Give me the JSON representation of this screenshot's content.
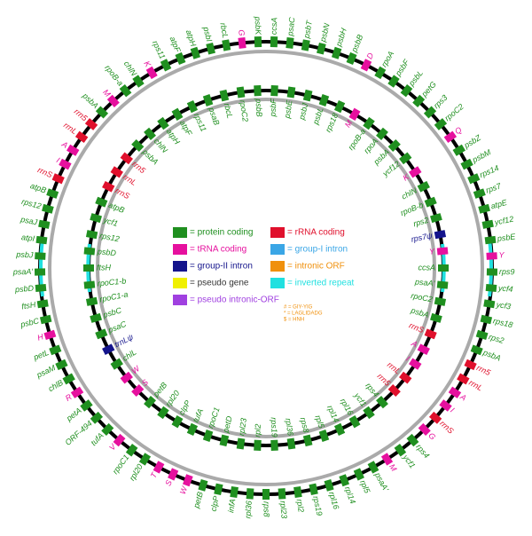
{
  "genomes": [
    {
      "genes": [
        {
          "label": "ccsA",
          "color": "#1f8f1f"
        },
        {
          "label": "psaC",
          "color": "#1f8f1f"
        },
        {
          "label": "psbT",
          "color": "#1f8f1f"
        },
        {
          "label": "psbN",
          "color": "#1f8f1f"
        },
        {
          "label": "psbH",
          "color": "#1f8f1f"
        },
        {
          "label": "psbB",
          "color": "#1f8f1f"
        },
        {
          "label": "D",
          "color": "#e6109e"
        },
        {
          "label": "rpoA",
          "color": "#1f8f1f"
        },
        {
          "label": "psbF",
          "color": "#1f8f1f"
        },
        {
          "label": "psbL",
          "color": "#1f8f1f"
        },
        {
          "label": "petG",
          "color": "#1f8f1f"
        },
        {
          "label": "rps3",
          "color": "#1f8f1f"
        },
        {
          "label": "rpoC2",
          "color": "#1f8f1f"
        },
        {
          "label": "Q",
          "color": "#e6109e"
        },
        {
          "label": "psbZ",
          "color": "#1f8f1f"
        },
        {
          "label": "psbM",
          "color": "#1f8f1f"
        },
        {
          "label": "rps14",
          "color": "#1f8f1f"
        },
        {
          "label": "rps7",
          "color": "#1f8f1f"
        },
        {
          "label": "atpE",
          "color": "#1f8f1f"
        },
        {
          "label": "ycf12",
          "color": "#1f8f1f"
        },
        {
          "label": "psbE",
          "color": "#1f8f1f"
        },
        {
          "label": "Y",
          "color": "#e6109e"
        },
        {
          "label": "rps9",
          "color": "#1f8f1f"
        },
        {
          "label": "ycf4",
          "color": "#1f8f1f"
        },
        {
          "label": "ycf3",
          "color": "#1f8f1f"
        },
        {
          "label": "rps18",
          "color": "#1f8f1f"
        },
        {
          "label": "rps2",
          "color": "#1f8f1f"
        },
        {
          "label": "psbA",
          "color": "#1f8f1f"
        },
        {
          "label": "rrn5",
          "color": "#e0102c"
        },
        {
          "label": "rrnL",
          "color": "#e0102c"
        },
        {
          "label": "A",
          "color": "#e6109e"
        },
        {
          "label": "I",
          "color": "#e6109e"
        },
        {
          "label": "rrnS",
          "color": "#e0102c"
        },
        {
          "label": "G",
          "color": "#e6109e"
        },
        {
          "label": "rps4",
          "color": "#1f8f1f"
        },
        {
          "label": "ycf1",
          "color": "#1f8f1f"
        },
        {
          "label": "M",
          "color": "#e6109e"
        },
        {
          "label": "psaA'",
          "color": "#1f8f1f"
        },
        {
          "label": "rpl5",
          "color": "#1f8f1f"
        },
        {
          "label": "rpl14",
          "color": "#1f8f1f"
        },
        {
          "label": "rpl16",
          "color": "#1f8f1f"
        },
        {
          "label": "rps19",
          "color": "#1f8f1f"
        },
        {
          "label": "rpl2",
          "color": "#1f8f1f"
        },
        {
          "label": "rpl23",
          "color": "#1f8f1f"
        },
        {
          "label": "rps8",
          "color": "#1f8f1f"
        },
        {
          "label": "rpl36",
          "color": "#1f8f1f"
        },
        {
          "label": "infA",
          "color": "#1f8f1f"
        },
        {
          "label": "clpP",
          "color": "#1f8f1f"
        },
        {
          "label": "petB",
          "color": "#1f8f1f"
        },
        {
          "label": "W",
          "color": "#e6109e"
        },
        {
          "label": "S",
          "color": "#e6109e"
        },
        {
          "label": "T",
          "color": "#e6109e"
        },
        {
          "label": "rpl20",
          "color": "#1f8f1f"
        },
        {
          "label": "rpoC1",
          "color": "#1f8f1f"
        },
        {
          "label": "V",
          "color": "#e6109e"
        },
        {
          "label": "tufA",
          "color": "#1f8f1f"
        },
        {
          "label": "ORF-494",
          "color": "#1f8f1f"
        },
        {
          "label": "petA",
          "color": "#1f8f1f"
        },
        {
          "label": "R",
          "color": "#e6109e"
        },
        {
          "label": "chlB",
          "color": "#1f8f1f"
        },
        {
          "label": "psaM",
          "color": "#1f8f1f"
        },
        {
          "label": "petL",
          "color": "#1f8f1f"
        },
        {
          "label": "H",
          "color": "#e6109e"
        },
        {
          "label": "psbC",
          "color": "#1f8f1f"
        },
        {
          "label": "ftsH",
          "color": "#1f8f1f"
        },
        {
          "label": "psbD",
          "color": "#1f8f1f"
        },
        {
          "label": "psaA'",
          "color": "#1f8f1f"
        },
        {
          "label": "psbJ",
          "color": "#1f8f1f"
        },
        {
          "label": "atpI",
          "color": "#1f8f1f"
        },
        {
          "label": "psaJ",
          "color": "#1f8f1f"
        },
        {
          "label": "rps12",
          "color": "#1f8f1f"
        },
        {
          "label": "atpB",
          "color": "#1f8f1f"
        },
        {
          "label": "rrnS",
          "color": "#e0102c"
        },
        {
          "label": "I",
          "color": "#e6109e"
        },
        {
          "label": "A",
          "color": "#e6109e"
        },
        {
          "label": "rrnL",
          "color": "#e0102c"
        },
        {
          "label": "rrn5",
          "color": "#e0102c"
        },
        {
          "label": "psbA",
          "color": "#1f8f1f"
        },
        {
          "label": "M",
          "color": "#e6109e"
        },
        {
          "label": "rpoB-a",
          "color": "#1f8f1f"
        },
        {
          "label": "chlN",
          "color": "#1f8f1f"
        },
        {
          "label": "K",
          "color": "#e6109e"
        },
        {
          "label": "rps11",
          "color": "#1f8f1f"
        },
        {
          "label": "atpF",
          "color": "#1f8f1f"
        },
        {
          "label": "atpH",
          "color": "#1f8f1f"
        },
        {
          "label": "psbI",
          "color": "#1f8f1f"
        },
        {
          "label": "rbcL",
          "color": "#1f8f1f"
        },
        {
          "label": "G",
          "color": "#e6109e"
        },
        {
          "label": "psbK",
          "color": "#1f8f1f"
        }
      ]
    },
    {
      "genes": [
        {
          "label": "psbF",
          "color": "#1f8f1f"
        },
        {
          "label": "psbE",
          "color": "#1f8f1f"
        },
        {
          "label": "psbJ",
          "color": "#1f8f1f"
        },
        {
          "label": "psbL",
          "color": "#1f8f1f"
        },
        {
          "label": "rps18",
          "color": "#1f8f1f"
        },
        {
          "label": "M",
          "color": "#e6109e"
        },
        {
          "label": "rpoB-a",
          "color": "#1f8f1f"
        },
        {
          "label": "rpoA",
          "color": "#1f8f1f"
        },
        {
          "label": "psbA",
          "color": "#1f8f1f"
        },
        {
          "label": "ycf12",
          "color": "#1f8f1f"
        },
        {
          "label": "K",
          "color": "#e6109e"
        },
        {
          "label": "chlN",
          "color": "#1f8f1f"
        },
        {
          "label": "rpoB-b",
          "color": "#1f8f1f"
        },
        {
          "label": "rps2",
          "color": "#1f8f1f"
        },
        {
          "label": "rps7ψ",
          "color": "#14148c"
        },
        {
          "label": "Y",
          "color": "#e6109e"
        },
        {
          "label": "ccsA",
          "color": "#1f8f1f"
        },
        {
          "label": "psaA'",
          "color": "#1f8f1f"
        },
        {
          "label": "rpoC2",
          "color": "#1f8f1f"
        },
        {
          "label": "psbA",
          "color": "#1f8f1f"
        },
        {
          "label": "rrnS",
          "color": "#e0102c"
        },
        {
          "label": "A",
          "color": "#e6109e"
        },
        {
          "label": "I",
          "color": "#e6109e"
        },
        {
          "label": "rrnL",
          "color": "#e0102c"
        },
        {
          "label": "rrn5",
          "color": "#e0102c"
        },
        {
          "label": "rps4",
          "color": "#1f8f1f"
        },
        {
          "label": "ycf1",
          "color": "#1f8f1f"
        },
        {
          "label": "rpl16",
          "color": "#1f8f1f"
        },
        {
          "label": "rpl14",
          "color": "#1f8f1f"
        },
        {
          "label": "rpl5",
          "color": "#1f8f1f"
        },
        {
          "label": "rps8",
          "color": "#1f8f1f"
        },
        {
          "label": "rpl36",
          "color": "#1f8f1f"
        },
        {
          "label": "rps19",
          "color": "#1f8f1f"
        },
        {
          "label": "rpl2",
          "color": "#1f8f1f"
        },
        {
          "label": "rpl23",
          "color": "#1f8f1f"
        },
        {
          "label": "petD",
          "color": "#1f8f1f"
        },
        {
          "label": "rpoC1",
          "color": "#1f8f1f"
        },
        {
          "label": "tufA",
          "color": "#1f8f1f"
        },
        {
          "label": "clpP",
          "color": "#1f8f1f"
        },
        {
          "label": "rpl20",
          "color": "#1f8f1f"
        },
        {
          "label": "petB",
          "color": "#1f8f1f"
        },
        {
          "label": "S",
          "color": "#e6109e"
        },
        {
          "label": "W",
          "color": "#e6109e"
        },
        {
          "label": "chlL",
          "color": "#1f8f1f"
        },
        {
          "label": "trnLψ",
          "color": "#14148c"
        },
        {
          "label": "psaC",
          "color": "#1f8f1f"
        },
        {
          "label": "psbC",
          "color": "#1f8f1f"
        },
        {
          "label": "rpoC1-a",
          "color": "#1f8f1f"
        },
        {
          "label": "rpoC1-b",
          "color": "#1f8f1f"
        },
        {
          "label": "ftsH",
          "color": "#1f8f1f"
        },
        {
          "label": "psbD",
          "color": "#1f8f1f"
        },
        {
          "label": "rps12",
          "color": "#1f8f1f"
        },
        {
          "label": "ycf1",
          "color": "#1f8f1f"
        },
        {
          "label": "atpB",
          "color": "#1f8f1f"
        },
        {
          "label": "rrnS",
          "color": "#e0102c"
        },
        {
          "label": "rrnL",
          "color": "#e0102c"
        },
        {
          "label": "rrn5",
          "color": "#e0102c"
        },
        {
          "label": "psbA",
          "color": "#1f8f1f"
        },
        {
          "label": "chlN",
          "color": "#1f8f1f"
        },
        {
          "label": "atpH",
          "color": "#1f8f1f"
        },
        {
          "label": "atpF",
          "color": "#1f8f1f"
        },
        {
          "label": "rps11",
          "color": "#1f8f1f"
        },
        {
          "label": "psaB",
          "color": "#1f8f1f"
        },
        {
          "label": "rbcL",
          "color": "#1f8f1f"
        },
        {
          "label": "rpoC2",
          "color": "#1f8f1f"
        },
        {
          "label": "psbB",
          "color": "#1f8f1f"
        }
      ]
    }
  ],
  "legend": {
    "items": [
      {
        "label": "= protein coding",
        "color": "#1f8f1f"
      },
      {
        "label": "= tRNA coding",
        "color": "#e6109e"
      },
      {
        "label": "= group-II intron",
        "color": "#14148c"
      },
      {
        "label": "= pseudo gene",
        "color": "#f0f000"
      },
      {
        "label": "= pseudo intronic-ORF",
        "color": "#a040e0"
      },
      {
        "label": "= rRNA coding",
        "color": "#e0102c"
      },
      {
        "label": "= group-I intron",
        "color": "#3aa6e6"
      },
      {
        "label": "= intronic ORF",
        "color": "#f0900c"
      },
      {
        "label": "= inverted repeat",
        "color": "#20e0e0"
      }
    ],
    "notes": [
      "# = GIY-YIG",
      "* = LAGLIDADG",
      "$ = HNH"
    ]
  }
}
